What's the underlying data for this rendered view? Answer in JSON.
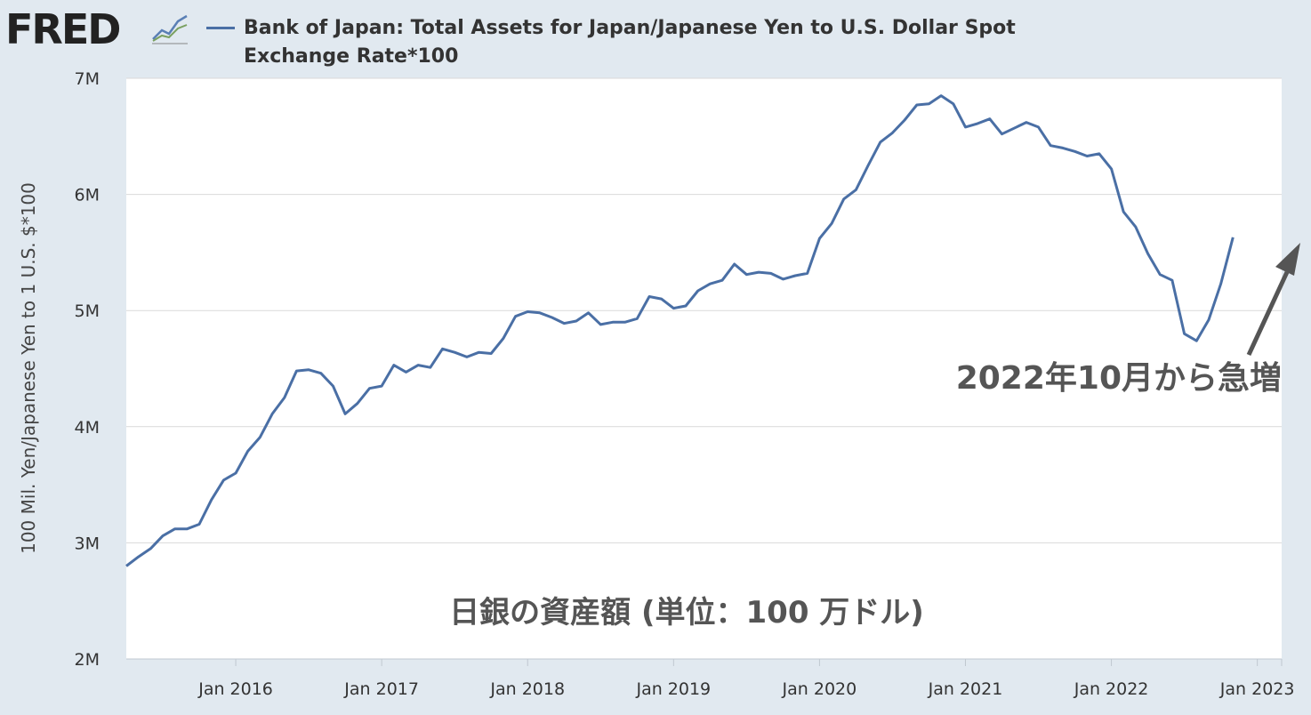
{
  "header": {
    "logo_text": "FRED",
    "logo_icon": "chart-line-icon"
  },
  "colors": {
    "background": "#e1e9f0",
    "series": "#4a6fa5",
    "grid": "#d9d9d9",
    "annotation": "#555555"
  },
  "chart_data": {
    "type": "line",
    "title": "Bank of Japan: Total Assets for Japan/Japanese Yen to U.S. Dollar Spot Exchange Rate*100",
    "ylabel": "100 Mil. Yen/Japanese Yen to 1 U.S. $*100",
    "xlabel": "",
    "ylim": [
      2000000,
      7000000
    ],
    "yticks": [
      {
        "v": 2000000,
        "label": "2M"
      },
      {
        "v": 3000000,
        "label": "3M"
      },
      {
        "v": 4000000,
        "label": "4M"
      },
      {
        "v": 5000000,
        "label": "5M"
      },
      {
        "v": 6000000,
        "label": "6M"
      },
      {
        "v": 7000000,
        "label": "7M"
      }
    ],
    "xlim": [
      "2015-04",
      "2023-03"
    ],
    "xticks": [
      {
        "v": "2016-01",
        "label": "Jan 2016"
      },
      {
        "v": "2017-01",
        "label": "Jan 2017"
      },
      {
        "v": "2018-01",
        "label": "Jan 2018"
      },
      {
        "v": "2019-01",
        "label": "Jan 2019"
      },
      {
        "v": "2020-01",
        "label": "Jan 2020"
      },
      {
        "v": "2021-01",
        "label": "Jan 2021"
      },
      {
        "v": "2022-01",
        "label": "Jan 2022"
      },
      {
        "v": "2023-01",
        "label": "Jan 2023"
      }
    ],
    "grid": true,
    "series": [
      {
        "start": "2015-04",
        "frequency": "monthly",
        "values": [
          2800000,
          2880000,
          2950000,
          3060000,
          3120000,
          3120000,
          3160000,
          3370000,
          3540000,
          3600000,
          3790000,
          3910000,
          4110000,
          4250000,
          4480000,
          4490000,
          4460000,
          4350000,
          4110000,
          4200000,
          4330000,
          4350000,
          4530000,
          4470000,
          4530000,
          4510000,
          4670000,
          4640000,
          4600000,
          4640000,
          4630000,
          4760000,
          4950000,
          4990000,
          4980000,
          4940000,
          4890000,
          4910000,
          4980000,
          4880000,
          4900000,
          4900000,
          4930000,
          5120000,
          5100000,
          5020000,
          5040000,
          5170000,
          5230000,
          5260000,
          5400000,
          5310000,
          5330000,
          5320000,
          5270000,
          5300000,
          5320000,
          5620000,
          5750000,
          5960000,
          6040000,
          6250000,
          6450000,
          6530000,
          6640000,
          6770000,
          6780000,
          6850000,
          6780000,
          6580000,
          6610000,
          6650000,
          6520000,
          6570000,
          6620000,
          6580000,
          6420000,
          6400000,
          6370000,
          6330000,
          6350000,
          6220000,
          5850000,
          5720000,
          5490000,
          5310000,
          5260000,
          4800000,
          4740000,
          4920000,
          5230000,
          5630000
        ]
      }
    ],
    "annotations": [
      {
        "text": "2022年10月から急増"
      },
      {
        "text": "日銀の資産額 (単位：100 万ドル)"
      }
    ]
  }
}
